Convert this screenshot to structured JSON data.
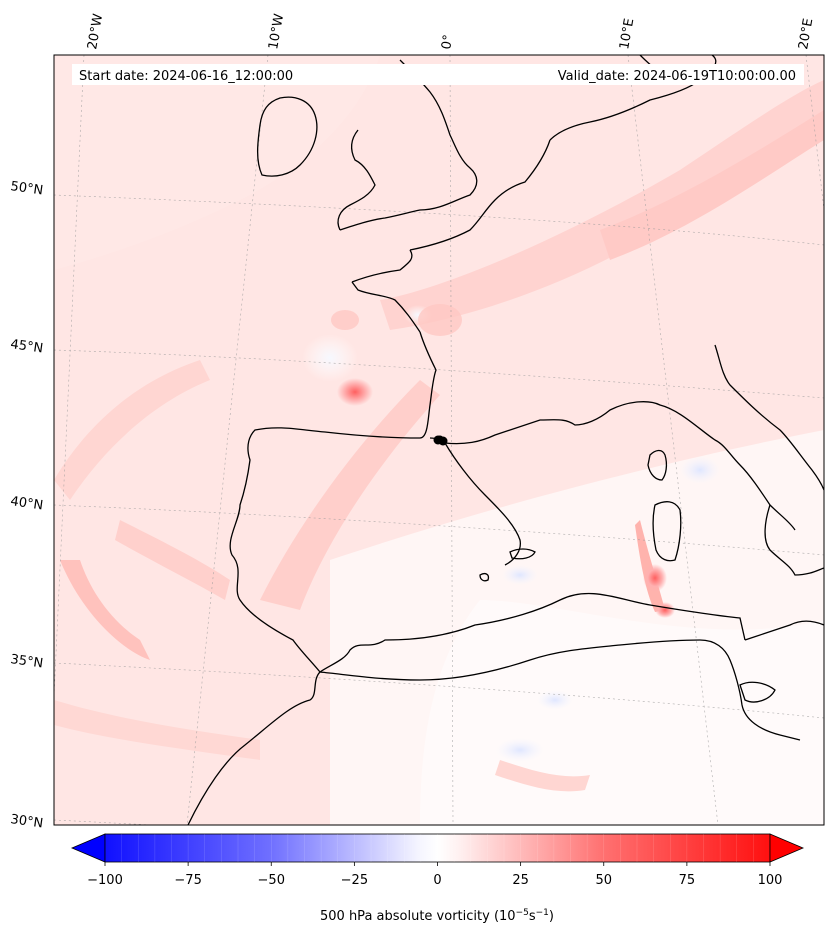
{
  "map": {
    "start_date": "Start date: 2024-06-16_12:00:00",
    "valid_date": "Valid_date: 2024-06-19T10:00:00.00",
    "lon_labels": [
      "20°W",
      "10°W",
      "0°",
      "10°E",
      "20°E"
    ],
    "lat_labels": [
      "50°N",
      "45°N",
      "40°N",
      "35°N",
      "30°N"
    ],
    "colors": {
      "negative_max": "#0000ff",
      "positive_max": "#ff0000",
      "zero": "#ffffff",
      "coastline": "#000000",
      "field_mean": "#ffe4e2"
    }
  },
  "colorbar": {
    "label": "500 hPa absolute vorticity (10",
    "label_exp1": "−5",
    "label_mid": "s",
    "label_exp2": "−1",
    "label_end": ")",
    "ticks": [
      "−100",
      "−75",
      "−50",
      "−25",
      "0",
      "25",
      "50",
      "75",
      "100"
    ],
    "tick_values": [
      -100,
      -75,
      -50,
      -25,
      0,
      25,
      50,
      75,
      100
    ],
    "range": [
      -100,
      100
    ],
    "extend": "both"
  }
}
